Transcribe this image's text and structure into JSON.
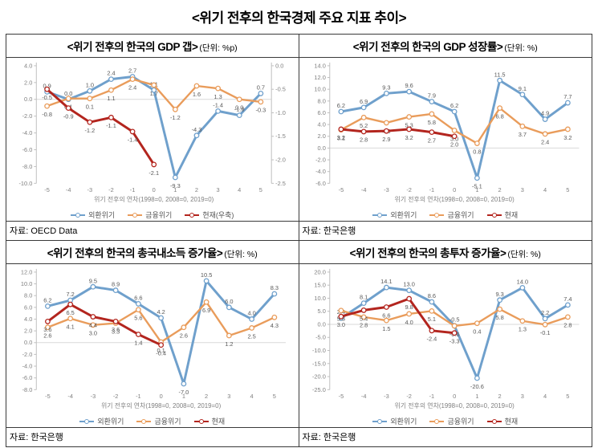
{
  "page_title": "<위기 전후의 한국경제 주요 지표 추이>",
  "colors": {
    "crisis1997": "#6FA0CC",
    "crisis2008": "#E99C5B",
    "current": "#B3251E",
    "grid": "#D9D9D9",
    "axis": "#BFBFBF",
    "tick": "#808080",
    "label": "#595959"
  },
  "chart_data": [
    {
      "type": "line",
      "title": "<위기 전후의 한국의 GDP 갭>",
      "unit": "(단위: %p)",
      "source": "자료: OECD Data",
      "x_label": "위기 전후의 연차(1998=0, 2008=0, 2019=0)",
      "categories": [
        "-5",
        "-4",
        "-3",
        "-2",
        "-1",
        "0",
        "1",
        "2",
        "3",
        "4",
        "5"
      ],
      "y_ticks_left": [
        "4.0",
        "2.0",
        "0.0",
        "-2.0",
        "-4.0",
        "-6.0",
        "-8.0",
        "-10.0"
      ],
      "y_ticks_right": [
        "0.0",
        "-0.5",
        "-1.0",
        "-1.5",
        "-2.0",
        "-2.5"
      ],
      "legend": [
        "외환위기",
        "금융위기",
        "현재(우축)"
      ],
      "series": [
        {
          "name": "외환위기",
          "color_key": "crisis1997",
          "axis": "left",
          "values": [
            0.9,
            -0.0,
            1.0,
            2.4,
            2.7,
            1.1,
            -9.3,
            -4.3,
            -1.4,
            -1.9,
            0.7
          ]
        },
        {
          "name": "금융위기",
          "color_key": "crisis2008",
          "axis": "left",
          "values": [
            -0.8,
            0.1,
            0.1,
            1.1,
            2.4,
            1.7,
            -1.2,
            1.6,
            1.3,
            0.0,
            -0.3
          ]
        },
        {
          "name": "현재(우축)",
          "color_key": "current",
          "axis": "right",
          "values": [
            -0.5,
            -0.9,
            -1.2,
            -1.1,
            -1.4,
            -2.1
          ]
        }
      ]
    },
    {
      "type": "line",
      "title": "<위기 전후의 한국의 GDP 성장률>",
      "unit": "(단위: %)",
      "source": "자료: 한국은행",
      "x_label": "위기 전후의 연차(1998=0, 2008=0, 2019=0)",
      "categories": [
        "-5",
        "-4",
        "-3",
        "-2",
        "-1",
        "0",
        "1",
        "2",
        "3",
        "4",
        "5"
      ],
      "y_ticks_left": [
        "14.0",
        "12.0",
        "10.0",
        "8.0",
        "6.0",
        "4.0",
        "2.0",
        "0.0",
        "-2.0",
        "-4.0",
        "-6.0"
      ],
      "legend": [
        "외환위기",
        "금융위기",
        "현재"
      ],
      "series": [
        {
          "name": "외환위기",
          "color_key": "crisis1997",
          "axis": "left",
          "values": [
            6.2,
            6.9,
            9.3,
            9.6,
            7.9,
            6.2,
            -5.1,
            11.5,
            9.1,
            4.9,
            7.7
          ]
        },
        {
          "name": "금융위기",
          "color_key": "crisis2008",
          "axis": "left",
          "values": [
            3.1,
            5.2,
            4.3,
            5.3,
            5.8,
            3.0,
            0.8,
            6.8,
            3.7,
            2.4,
            3.2
          ]
        },
        {
          "name": "현재",
          "color_key": "current",
          "axis": "left",
          "values": [
            3.2,
            2.8,
            2.9,
            3.2,
            2.7,
            2.0
          ]
        }
      ]
    },
    {
      "type": "line",
      "title": "<위기 전후의 한국의 총국내소득 증가율>",
      "unit": "(단위: %)",
      "source": "자료: 한국은행",
      "x_label": "위기 전후의 연차(1998=0, 2008=0, 2019=0)",
      "categories": [
        "-5",
        "-4",
        "-3",
        "-2",
        "-1",
        "0",
        "1",
        "2",
        "3",
        "4",
        "5"
      ],
      "y_ticks_left": [
        "12.0",
        "10.0",
        "8.0",
        "6.0",
        "4.0",
        "2.0",
        "0.0",
        "-2.0",
        "-4.0",
        "-6.0",
        "-8.0"
      ],
      "legend": [
        "외환위기",
        "금융위기",
        "현재"
      ],
      "series": [
        {
          "name": "외환위기",
          "color_key": "crisis1997",
          "axis": "left",
          "values": [
            6.2,
            7.2,
            9.5,
            8.9,
            6.6,
            4.2,
            -7.0,
            10.5,
            6.0,
            4.0,
            8.3
          ]
        },
        {
          "name": "금융위기",
          "color_key": "crisis2008",
          "axis": "left",
          "values": [
            2.6,
            4.1,
            3.0,
            3.3,
            5.6,
            0.1,
            2.6,
            6.9,
            1.2,
            2.5,
            4.3
          ]
        },
        {
          "name": "현재",
          "color_key": "current",
          "axis": "left",
          "values": [
            3.6,
            6.5,
            4.4,
            3.6,
            1.4,
            -0.4
          ]
        }
      ]
    },
    {
      "type": "line",
      "title": "<위기 전후의 한국의 총투자 증가율>",
      "unit": "(단위: %)",
      "source": "자료: 한국은행",
      "x_label": "위기 전후의 연차(1998=0, 2008=0, 2019=0)",
      "categories": [
        "-5",
        "-4",
        "-3",
        "-2",
        "-1",
        "0",
        "1",
        "2",
        "3",
        "4",
        "5"
      ],
      "y_ticks_left": [
        "20.0",
        "15.0",
        "10.0",
        "5.0",
        "0.0",
        "-5.0",
        "-10.0",
        "-15.0",
        "-20.0",
        "-25.0"
      ],
      "legend": [
        "외환위기",
        "금융위기",
        "현재"
      ],
      "series": [
        {
          "name": "외환위기",
          "color_key": "crisis1997",
          "axis": "left",
          "values": [
            2.4,
            8.1,
            14.1,
            13.0,
            8.6,
            -0.5,
            -20.6,
            9.3,
            14.0,
            2.2,
            7.4
          ]
        },
        {
          "name": "금융위기",
          "color_key": "crisis2008",
          "axis": "left",
          "values": [
            5.3,
            2.8,
            1.5,
            4.0,
            5.1,
            -0.6,
            0.4,
            5.8,
            1.3,
            -0.1,
            2.8
          ]
        },
        {
          "name": "현재",
          "color_key": "current",
          "axis": "left",
          "values": [
            3.0,
            5.4,
            6.6,
            9.8,
            -2.4,
            -3.3
          ]
        }
      ]
    }
  ]
}
